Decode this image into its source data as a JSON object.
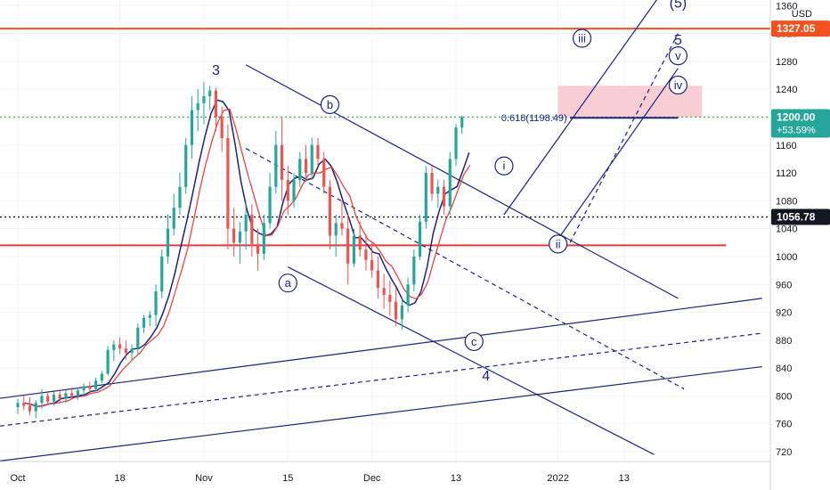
{
  "chart_data": {
    "type": "candlestick",
    "currency": "USD",
    "x_ticks": [
      {
        "label": "Oct",
        "i": 0
      },
      {
        "label": "18",
        "i": 17
      },
      {
        "label": "Nov",
        "i": 31
      },
      {
        "label": "15",
        "i": 45
      },
      {
        "label": "Dec",
        "i": 59
      },
      {
        "label": "13",
        "i": 73
      },
      {
        "label": "2022",
        "i": 90
      },
      {
        "label": "13",
        "i": 101
      }
    ],
    "y_ticks": [
      1360,
      1320,
      1280,
      1240,
      1200,
      1160,
      1120,
      1080,
      1040,
      1000,
      960,
      920,
      880,
      840,
      800,
      760,
      720
    ],
    "ylim": [
      706,
      1368
    ],
    "price_badges": [
      {
        "label": "1200.00",
        "sub": "+53.59%",
        "value": 1200,
        "color": "#26a69a"
      },
      {
        "label": "1056.78",
        "value": 1056.78,
        "color": "#131722"
      },
      {
        "label": "1327.05",
        "value": 1327,
        "color": "#f4511e"
      }
    ],
    "fib_label": "0.618(1198.49)",
    "wave_labels": [
      {
        "text": "3",
        "i": 33,
        "v": 1268
      },
      {
        "text": "b",
        "i": 52,
        "v": 1218
      },
      {
        "text": "a",
        "i": 45,
        "v": 962
      },
      {
        "text": "c",
        "i": 76,
        "v": 878
      },
      {
        "text": "4",
        "i": 78,
        "v": 830
      },
      {
        "text": "i",
        "i": 81,
        "v": 1130
      },
      {
        "text": "ii",
        "i": 90,
        "v": 1018
      },
      {
        "text": "iii",
        "i": 94,
        "v": 1313
      },
      {
        "text": "iv",
        "i": 110,
        "v": 1246
      },
      {
        "text": "v",
        "i": 110,
        "v": 1288
      },
      {
        "text": "5",
        "i": 110,
        "v": 1312
      },
      {
        "text": "(5)",
        "i": 110,
        "v": 1365
      }
    ],
    "candles": [
      [
        784,
        796,
        774,
        790
      ],
      [
        790,
        800,
        780,
        786
      ],
      [
        786,
        798,
        772,
        778
      ],
      [
        778,
        794,
        768,
        790
      ],
      [
        790,
        810,
        782,
        800
      ],
      [
        800,
        806,
        788,
        792
      ],
      [
        792,
        806,
        786,
        802
      ],
      [
        802,
        808,
        790,
        796
      ],
      [
        796,
        808,
        790,
        804
      ],
      [
        804,
        812,
        796,
        800
      ],
      [
        800,
        812,
        794,
        808
      ],
      [
        808,
        818,
        800,
        814
      ],
      [
        814,
        820,
        804,
        810
      ],
      [
        810,
        826,
        806,
        822
      ],
      [
        822,
        836,
        818,
        832
      ],
      [
        832,
        872,
        830,
        866
      ],
      [
        866,
        880,
        850,
        874
      ],
      [
        874,
        884,
        860,
        868
      ],
      [
        868,
        880,
        852,
        862
      ],
      [
        862,
        874,
        850,
        868
      ],
      [
        868,
        904,
        860,
        898
      ],
      [
        898,
        916,
        890,
        912
      ],
      [
        912,
        922,
        900,
        916
      ],
      [
        916,
        960,
        900,
        950
      ],
      [
        950,
        1010,
        940,
        1000
      ],
      [
        1000,
        1060,
        990,
        1040
      ],
      [
        1040,
        1090,
        1030,
        1070
      ],
      [
        1070,
        1120,
        1060,
        1100
      ],
      [
        1100,
        1170,
        1090,
        1160
      ],
      [
        1160,
        1230,
        1140,
        1210
      ],
      [
        1210,
        1240,
        1180,
        1220
      ],
      [
        1220,
        1250,
        1190,
        1230
      ],
      [
        1230,
        1245,
        1210,
        1238
      ],
      [
        1238,
        1242,
        1180,
        1200
      ],
      [
        1200,
        1215,
        1150,
        1170
      ],
      [
        1170,
        1190,
        1010,
        1040
      ],
      [
        1040,
        1070,
        1000,
        1020
      ],
      [
        1020,
        1050,
        990,
        1036
      ],
      [
        1036,
        1080,
        1010,
        1060
      ],
      [
        1060,
        1075,
        1000,
        1018
      ],
      [
        1018,
        1040,
        980,
        1004
      ],
      [
        1004,
        1060,
        995,
        1048
      ],
      [
        1048,
        1120,
        1040,
        1100
      ],
      [
        1100,
        1180,
        1090,
        1160
      ],
      [
        1160,
        1200,
        1080,
        1110
      ],
      [
        1110,
        1130,
        1060,
        1080
      ],
      [
        1080,
        1120,
        1070,
        1110
      ],
      [
        1110,
        1150,
        1100,
        1140
      ],
      [
        1140,
        1160,
        1110,
        1120
      ],
      [
        1120,
        1170,
        1110,
        1160
      ],
      [
        1160,
        1170,
        1130,
        1140
      ],
      [
        1140,
        1150,
        1090,
        1100
      ],
      [
        1100,
        1110,
        1010,
        1030
      ],
      [
        1030,
        1060,
        1000,
        1048
      ],
      [
        1048,
        1080,
        1030,
        1040
      ],
      [
        1040,
        1060,
        960,
        990
      ],
      [
        990,
        1040,
        985,
        1030
      ],
      [
        1030,
        1050,
        1000,
        1010
      ],
      [
        1010,
        1030,
        980,
        995
      ],
      [
        995,
        1020,
        970,
        980
      ],
      [
        980,
        1000,
        940,
        955
      ],
      [
        955,
        975,
        925,
        945
      ],
      [
        945,
        965,
        915,
        935
      ],
      [
        935,
        955,
        900,
        910
      ],
      [
        910,
        940,
        895,
        930
      ],
      [
        930,
        970,
        920,
        960
      ],
      [
        960,
        1010,
        950,
        1000
      ],
      [
        1000,
        1060,
        995,
        1050
      ],
      [
        1050,
        1130,
        1040,
        1120
      ],
      [
        1120,
        1130,
        1080,
        1090
      ],
      [
        1090,
        1110,
        1070,
        1100
      ],
      [
        1100,
        1110,
        1060,
        1072
      ],
      [
        1072,
        1150,
        1060,
        1140
      ],
      [
        1140,
        1190,
        1130,
        1185
      ],
      [
        1185,
        1202,
        1176,
        1200
      ]
    ]
  }
}
